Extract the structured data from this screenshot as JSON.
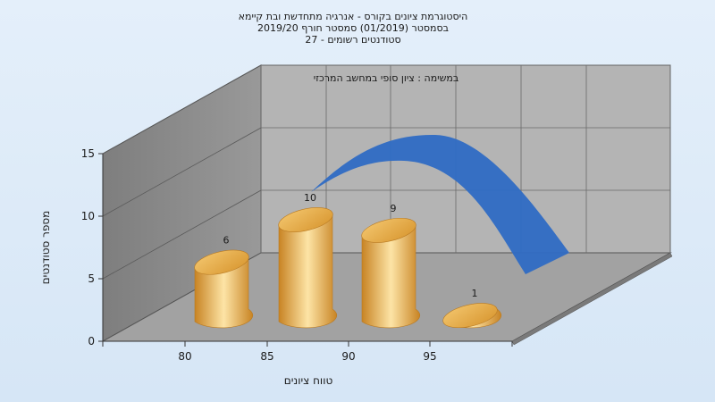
{
  "chart_data": {
    "type": "bar",
    "title_lines": [
      "היסטוגרמת ציונים בקורס - אנרגיה מתחדשת ובת קיימא",
      "בסמסטר  (01/2019)  סמסטר חורף 2019/20",
      "27 - סטודנטים רשומים"
    ],
    "subtitle": "במשימה : ציון סופי במחשב המרכזי",
    "xlabel": "טווח ציונים",
    "ylabel": "מספר סטודנטים",
    "categories": [
      "80",
      "85",
      "90",
      "95"
    ],
    "values": [
      6,
      10,
      9,
      1
    ],
    "value_labels": [
      "6",
      "10",
      "9",
      "1"
    ],
    "y_ticks": [
      "0",
      "5",
      "10",
      "15"
    ],
    "ylim": [
      0,
      15
    ],
    "grid": true,
    "colors": {
      "bar": "#e6a94a",
      "bar_light": "#fde4a6",
      "bar_dark": "#c88424",
      "curve": "#2f6bc4",
      "back_wall": "#b4b4b4",
      "side_wall": "#8c8c8c",
      "floor": "#a2a2a2"
    }
  }
}
